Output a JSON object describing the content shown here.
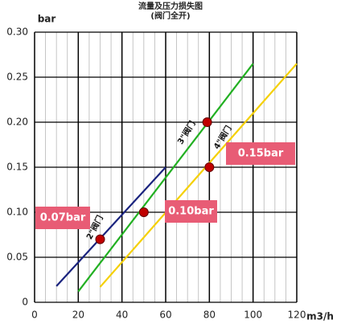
{
  "chart_data": {
    "type": "line",
    "title": "流量及压力损失图",
    "subtitle": "(阀门全开)",
    "ylabel": "bar",
    "xlabel": "m3/h",
    "xlim": [
      0,
      120
    ],
    "ylim": [
      0,
      0.3
    ],
    "xticks": [
      0,
      20,
      40,
      60,
      80,
      100,
      120
    ],
    "yticks": [
      0,
      0.05,
      {
        "value": 0.1,
        "label": "0.10"
      },
      0.15,
      {
        "value": 0.2,
        "label": "0.20"
      },
      0.25,
      {
        "value": 0.3,
        "label": "0.30"
      }
    ],
    "xminorticks": [
      5,
      10,
      15,
      25,
      30,
      35,
      45,
      50,
      55,
      65,
      70,
      75,
      85,
      90,
      95,
      105,
      110,
      115
    ],
    "grid": true,
    "series": [
      {
        "name": "2\"阀门",
        "color": "#1a237e",
        "x": [
          10,
          60
        ],
        "values": [
          0.018,
          0.15
        ]
      },
      {
        "name": "3\"阀门",
        "color": "#22b022",
        "x": [
          20,
          100
        ],
        "values": [
          0.012,
          0.265
        ]
      },
      {
        "name": "4\"阀门",
        "color": "#f5d000",
        "x": [
          30,
          120
        ],
        "values": [
          0.017,
          0.265
        ]
      }
    ],
    "points": {
      "color": "#c00000",
      "x": [
        30,
        50,
        79,
        80
      ],
      "values": [
        0.07,
        0.1,
        0.2,
        0.15
      ],
      "value_labels": [
        "0.07bar",
        "0.10bar",
        null,
        "0.15bar"
      ]
    }
  }
}
